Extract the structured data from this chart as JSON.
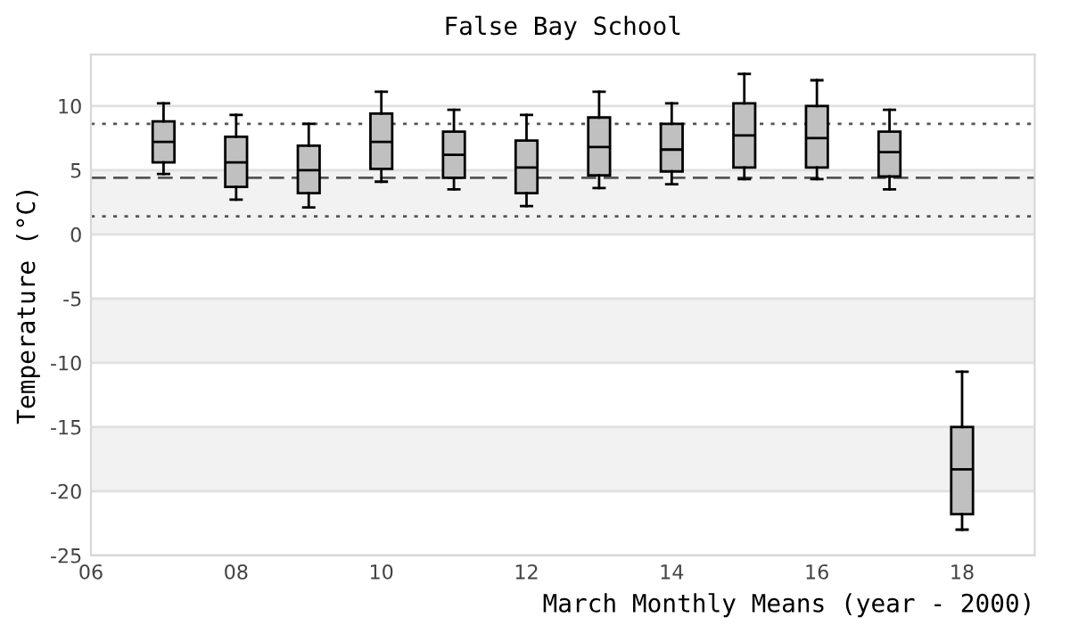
{
  "chart_data": {
    "type": "box",
    "title": "False Bay School",
    "xlabel": "March Monthly Means (year - 2000)",
    "ylabel": "Temperature (°C)",
    "x": [
      7,
      8,
      9,
      10,
      11,
      12,
      13,
      14,
      15,
      16,
      17,
      18
    ],
    "color": "#c0c0c0",
    "boxes": [
      {
        "low": 4.7,
        "q1": 5.6,
        "median": 7.2,
        "q3": 8.8,
        "high": 10.2
      },
      {
        "low": 2.7,
        "q1": 3.7,
        "median": 5.6,
        "q3": 7.6,
        "high": 9.3
      },
      {
        "low": 2.1,
        "q1": 3.2,
        "median": 5.0,
        "q3": 6.9,
        "high": 8.6
      },
      {
        "low": 4.1,
        "q1": 5.1,
        "median": 7.2,
        "q3": 9.4,
        "high": 11.1
      },
      {
        "low": 3.5,
        "q1": 4.4,
        "median": 6.2,
        "q3": 8.0,
        "high": 9.7
      },
      {
        "low": 2.2,
        "q1": 3.2,
        "median": 5.2,
        "q3": 7.3,
        "high": 9.3
      },
      {
        "low": 3.6,
        "q1": 4.6,
        "median": 6.8,
        "q3": 9.1,
        "high": 11.1
      },
      {
        "low": 3.9,
        "q1": 4.9,
        "median": 6.6,
        "q3": 8.6,
        "high": 10.2
      },
      {
        "low": 4.3,
        "q1": 5.2,
        "median": 7.7,
        "q3": 10.2,
        "high": 12.5
      },
      {
        "low": 4.3,
        "q1": 5.2,
        "median": 7.5,
        "q3": 10.0,
        "high": 12.0
      },
      {
        "low": 3.5,
        "q1": 4.5,
        "median": 6.4,
        "q3": 8.0,
        "high": 9.7
      },
      {
        "low": -23.0,
        "q1": -21.8,
        "median": -18.3,
        "q3": -15.0,
        "high": -10.7
      }
    ],
    "xlim": [
      6,
      19
    ],
    "xticks": [
      {
        "value": 6,
        "label": "06"
      },
      {
        "value": 8,
        "label": "08"
      },
      {
        "value": 10,
        "label": "10"
      },
      {
        "value": 12,
        "label": "12"
      },
      {
        "value": 14,
        "label": "14"
      },
      {
        "value": 16,
        "label": "16"
      },
      {
        "value": 18,
        "label": "18"
      }
    ],
    "ylim": [
      -25,
      14
    ],
    "yticks": [
      -25,
      -20,
      -15,
      -10,
      -5,
      0,
      5,
      10
    ],
    "grid": "y",
    "bands": [
      {
        "axis": "y",
        "from": 0,
        "to": 5,
        "color": "#f2f2f2"
      },
      {
        "axis": "y",
        "from": -10,
        "to": -5,
        "color": "#f2f2f2"
      },
      {
        "axis": "y",
        "from": -20,
        "to": -15,
        "color": "#f2f2f2"
      }
    ],
    "ref_lines": [
      {
        "axis": "y",
        "value": 4.4,
        "line_style": "dashed",
        "color": "#555555"
      },
      {
        "axis": "y",
        "value": 8.6,
        "line_style": "dotted",
        "color": "#555555"
      },
      {
        "axis": "y",
        "value": 1.4,
        "line_style": "dotted",
        "color": "#555555"
      }
    ]
  }
}
